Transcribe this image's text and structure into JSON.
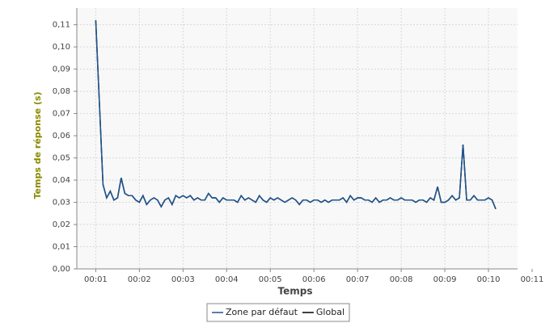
{
  "chart_data": {
    "type": "line",
    "xlabel": "Temps",
    "ylabel": "Temps de réponse (s)",
    "x": [
      60,
      70,
      75,
      80,
      85,
      90,
      95,
      100,
      105,
      110,
      115,
      120,
      125,
      130,
      135,
      140,
      145,
      150,
      155,
      160,
      165,
      170,
      175,
      180,
      185,
      190,
      195,
      200,
      205,
      210,
      215,
      220,
      225,
      230,
      235,
      240,
      245,
      250,
      255,
      260,
      265,
      270,
      275,
      280,
      285,
      290,
      295,
      300,
      305,
      310,
      315,
      320,
      325,
      330,
      335,
      340,
      345,
      350,
      355,
      360,
      365,
      370,
      375,
      380,
      385,
      390,
      395,
      400,
      405,
      410,
      415,
      420,
      425,
      430,
      435,
      440,
      445,
      450,
      455,
      460,
      465,
      470,
      475,
      480,
      485,
      490,
      495,
      500,
      505,
      510,
      515,
      520,
      525,
      530,
      535,
      540,
      545,
      550,
      555,
      560,
      565,
      570,
      575,
      580,
      585,
      590,
      595,
      600,
      605,
      610
    ],
    "series": [
      {
        "name": "Global",
        "color": "#000000",
        "values": [
          0.112,
          0.038,
          0.032,
          0.035,
          0.031,
          0.032,
          0.041,
          0.034,
          0.033,
          0.033,
          0.031,
          0.03,
          0.033,
          0.029,
          0.031,
          0.032,
          0.031,
          0.028,
          0.031,
          0.032,
          0.029,
          0.033,
          0.032,
          0.033,
          0.032,
          0.033,
          0.031,
          0.032,
          0.031,
          0.031,
          0.034,
          0.032,
          0.032,
          0.03,
          0.032,
          0.031,
          0.031,
          0.031,
          0.03,
          0.033,
          0.031,
          0.032,
          0.031,
          0.03,
          0.033,
          0.031,
          0.03,
          0.032,
          0.031,
          0.032,
          0.031,
          0.03,
          0.031,
          0.032,
          0.031,
          0.029,
          0.031,
          0.031,
          0.03,
          0.031,
          0.031,
          0.03,
          0.031,
          0.03,
          0.031,
          0.031,
          0.031,
          0.032,
          0.03,
          0.033,
          0.031,
          0.032,
          0.032,
          0.031,
          0.031,
          0.03,
          0.032,
          0.03,
          0.031,
          0.031,
          0.032,
          0.031,
          0.031,
          0.032,
          0.031,
          0.031,
          0.031,
          0.03,
          0.031,
          0.031,
          0.03,
          0.032,
          0.031,
          0.037,
          0.03,
          0.03,
          0.031,
          0.033,
          0.031,
          0.032,
          0.056,
          0.031,
          0.031,
          0.033,
          0.031,
          0.031,
          0.031,
          0.032,
          0.031,
          0.027
        ]
      },
      {
        "name": "Zone par défaut",
        "color": "#1f5591",
        "values": [
          0.112,
          0.038,
          0.032,
          0.035,
          0.031,
          0.032,
          0.041,
          0.034,
          0.033,
          0.033,
          0.031,
          0.03,
          0.033,
          0.029,
          0.031,
          0.032,
          0.031,
          0.028,
          0.031,
          0.032,
          0.029,
          0.033,
          0.032,
          0.033,
          0.032,
          0.033,
          0.031,
          0.032,
          0.031,
          0.031,
          0.034,
          0.032,
          0.032,
          0.03,
          0.032,
          0.031,
          0.031,
          0.031,
          0.03,
          0.033,
          0.031,
          0.032,
          0.031,
          0.03,
          0.033,
          0.031,
          0.03,
          0.032,
          0.031,
          0.032,
          0.031,
          0.03,
          0.031,
          0.032,
          0.031,
          0.029,
          0.031,
          0.031,
          0.03,
          0.031,
          0.031,
          0.03,
          0.031,
          0.03,
          0.031,
          0.031,
          0.031,
          0.032,
          0.03,
          0.033,
          0.031,
          0.032,
          0.032,
          0.031,
          0.031,
          0.03,
          0.032,
          0.03,
          0.031,
          0.031,
          0.032,
          0.031,
          0.031,
          0.032,
          0.031,
          0.031,
          0.031,
          0.03,
          0.031,
          0.031,
          0.03,
          0.032,
          0.031,
          0.037,
          0.03,
          0.03,
          0.031,
          0.033,
          0.031,
          0.032,
          0.056,
          0.031,
          0.031,
          0.033,
          0.031,
          0.031,
          0.031,
          0.032,
          0.031,
          0.027
        ]
      }
    ],
    "legend_order": [
      1,
      0
    ],
    "xlim": [
      34,
      640
    ],
    "ylim": [
      0,
      0.1175
    ],
    "xticks": [
      {
        "value": 60,
        "label": "00:01"
      },
      {
        "value": 120,
        "label": "00:02"
      },
      {
        "value": 180,
        "label": "00:03"
      },
      {
        "value": 240,
        "label": "00:04"
      },
      {
        "value": 300,
        "label": "00:05"
      },
      {
        "value": 360,
        "label": "00:06"
      },
      {
        "value": 420,
        "label": "00:07"
      },
      {
        "value": 480,
        "label": "00:08"
      },
      {
        "value": 540,
        "label": "00:09"
      },
      {
        "value": 600,
        "label": "00:10"
      },
      {
        "value": 660,
        "label": "00:11"
      }
    ],
    "yticks": [
      {
        "value": 0,
        "label": "0,00"
      },
      {
        "value": 0.01,
        "label": "0,01"
      },
      {
        "value": 0.02,
        "label": "0,02"
      },
      {
        "value": 0.03,
        "label": "0,03"
      },
      {
        "value": 0.04,
        "label": "0,04"
      },
      {
        "value": 0.05,
        "label": "0,05"
      },
      {
        "value": 0.06,
        "label": "0,06"
      },
      {
        "value": 0.07,
        "label": "0,07"
      },
      {
        "value": 0.08,
        "label": "0,08"
      },
      {
        "value": 0.09,
        "label": "0,09"
      },
      {
        "value": 0.1,
        "label": "0,10"
      },
      {
        "value": 0.11,
        "label": "0,11"
      }
    ],
    "grid": true
  }
}
